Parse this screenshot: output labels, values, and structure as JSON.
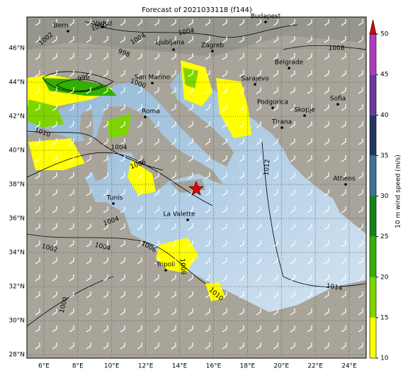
{
  "title": "Forecast of 2021033118 (f144)",
  "map": {
    "xlim": [
      5,
      25
    ],
    "ylim": [
      27.8,
      47.83
    ],
    "xticks": [
      {
        "value": 6,
        "label": "6°E"
      },
      {
        "value": 8,
        "label": "8°E"
      },
      {
        "value": 10,
        "label": "10°E"
      },
      {
        "value": 12,
        "label": "12°E"
      },
      {
        "value": 14,
        "label": "14°E"
      },
      {
        "value": 16,
        "label": "16°E"
      },
      {
        "value": 18,
        "label": "18°E"
      },
      {
        "value": 20,
        "label": "20°E"
      },
      {
        "value": 22,
        "label": "22°E"
      },
      {
        "value": 24,
        "label": "24°E"
      }
    ],
    "yticks": [
      {
        "value": 28,
        "label": "28°N"
      },
      {
        "value": 30,
        "label": "30°N"
      },
      {
        "value": 32,
        "label": "32°N"
      },
      {
        "value": 34,
        "label": "34°N"
      },
      {
        "value": 36,
        "label": "36°N"
      },
      {
        "value": 38,
        "label": "38°N"
      },
      {
        "value": 40,
        "label": "40°N"
      },
      {
        "value": 42,
        "label": "42°N"
      },
      {
        "value": 44,
        "label": "44°N"
      },
      {
        "value": 46,
        "label": "46°N"
      }
    ],
    "cities": [
      "Bern",
      "Vaduz",
      "Budapest",
      "Ljubljana",
      "Zagreb",
      "San Marino",
      "Belgrade",
      "Sarajevo",
      "Roma",
      "Podgorica",
      "Skopje",
      "Tirana",
      "Sofia",
      "Athens",
      "Tunis",
      "La Valette",
      "Tripoli"
    ],
    "isobar_labels": [
      1002,
      1010,
      1004,
      1004,
      998,
      996,
      1000,
      1008,
      1010,
      1004,
      1006,
      1012,
      1004,
      1002,
      1004,
      1006,
      1008,
      1010,
      1014,
      1000
    ]
  },
  "colorbar": {
    "label": "10 m wind speed (m/s)",
    "range": [
      10,
      50
    ],
    "ticks": [
      10,
      15,
      20,
      25,
      30,
      35,
      40,
      45,
      50
    ],
    "colors": [
      "#ffff00",
      "#7fd400",
      "#33b000",
      "#12861a",
      "#3f7297",
      "#22365f",
      "#6a3a9e",
      "#b03cbd"
    ],
    "over_color": "#e00000"
  }
}
